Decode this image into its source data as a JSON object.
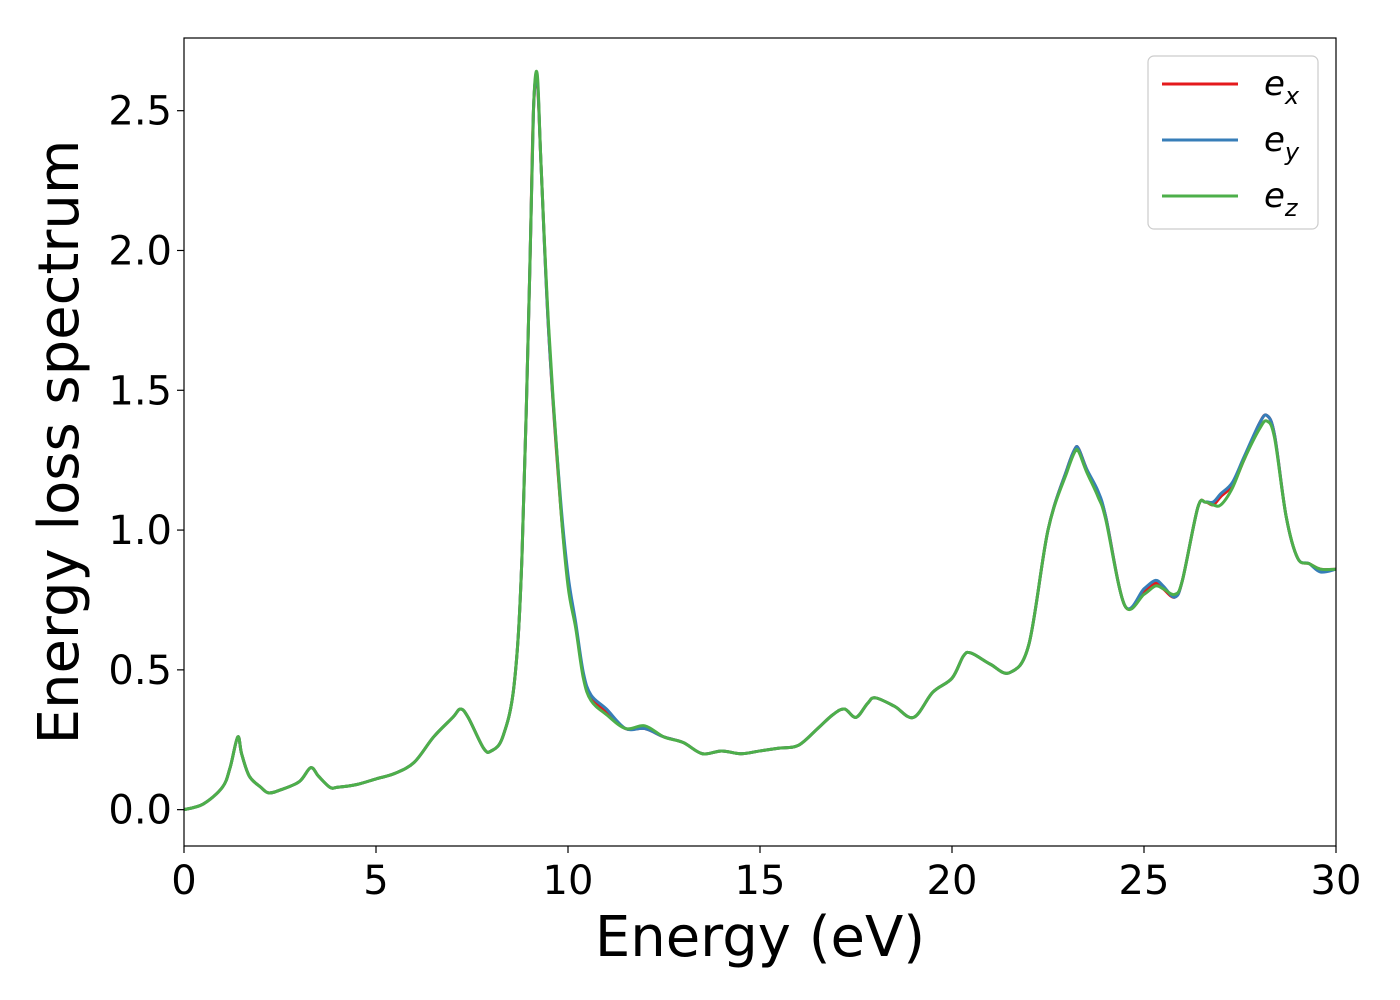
{
  "chart_data": {
    "type": "line",
    "xlabel": "Energy (eV)",
    "ylabel": "Energy loss spectrum",
    "xlim": [
      0,
      30
    ],
    "ylim": [
      -0.13,
      2.76
    ],
    "xticks": [
      0,
      5,
      10,
      15,
      20,
      25,
      30
    ],
    "yticks": [
      0.0,
      0.5,
      1.0,
      1.5,
      2.0,
      2.5
    ],
    "xtick_labels": [
      "0",
      "5",
      "10",
      "15",
      "20",
      "25",
      "30"
    ],
    "ytick_labels": [
      "0.0",
      "0.5",
      "1.0",
      "1.5",
      "2.0",
      "2.5"
    ],
    "grid": false,
    "legend_position": "top-right",
    "series": [
      {
        "name": "e_x",
        "label_base": "e",
        "label_sub": "x",
        "color": "#e41a1c",
        "x": [
          0,
          0.5,
          1.0,
          1.2,
          1.4,
          1.5,
          1.7,
          2.0,
          2.2,
          2.5,
          3.0,
          3.3,
          3.5,
          3.8,
          4.0,
          4.5,
          5.0,
          5.5,
          6.0,
          6.5,
          7.0,
          7.2,
          7.4,
          7.8,
          8.0,
          8.3,
          8.6,
          8.8,
          9.0,
          9.1,
          9.2,
          9.3,
          9.5,
          9.8,
          10.0,
          10.2,
          10.4,
          10.6,
          11.0,
          11.5,
          12.0,
          12.5,
          13.0,
          13.5,
          14.0,
          14.5,
          15.0,
          15.5,
          16.0,
          16.5,
          16.9,
          17.2,
          17.5,
          17.8,
          18.0,
          18.5,
          19.0,
          19.5,
          20.0,
          20.3,
          20.5,
          21.0,
          21.5,
          22.0,
          22.5,
          23.0,
          23.2,
          23.3,
          23.5,
          23.8,
          24.0,
          24.5,
          25.0,
          25.3,
          25.5,
          25.8,
          26.0,
          26.4,
          26.6,
          26.8,
          27.0,
          27.3,
          27.6,
          28.0,
          28.2,
          28.4,
          28.7,
          29.0,
          29.3,
          29.6,
          30.0
        ],
        "values": [
          0.0,
          0.02,
          0.08,
          0.15,
          0.26,
          0.2,
          0.12,
          0.08,
          0.06,
          0.07,
          0.1,
          0.15,
          0.12,
          0.08,
          0.08,
          0.09,
          0.11,
          0.13,
          0.17,
          0.26,
          0.33,
          0.36,
          0.33,
          0.22,
          0.21,
          0.26,
          0.45,
          0.9,
          1.9,
          2.5,
          2.6,
          2.3,
          1.7,
          1.1,
          0.82,
          0.66,
          0.48,
          0.4,
          0.35,
          0.29,
          0.29,
          0.26,
          0.24,
          0.2,
          0.21,
          0.2,
          0.21,
          0.22,
          0.23,
          0.29,
          0.34,
          0.36,
          0.33,
          0.38,
          0.4,
          0.37,
          0.33,
          0.42,
          0.47,
          0.55,
          0.56,
          0.52,
          0.49,
          0.59,
          1.0,
          1.22,
          1.29,
          1.29,
          1.22,
          1.13,
          1.05,
          0.73,
          0.78,
          0.81,
          0.79,
          0.76,
          0.82,
          1.08,
          1.1,
          1.09,
          1.12,
          1.16,
          1.25,
          1.38,
          1.41,
          1.34,
          1.05,
          0.9,
          0.88,
          0.86,
          0.86
        ]
      },
      {
        "name": "e_y",
        "label_base": "e",
        "label_sub": "y",
        "color": "#377eb8",
        "x": [
          0,
          0.5,
          1.0,
          1.2,
          1.4,
          1.5,
          1.7,
          2.0,
          2.2,
          2.5,
          3.0,
          3.3,
          3.5,
          3.8,
          4.0,
          4.5,
          5.0,
          5.5,
          6.0,
          6.5,
          7.0,
          7.2,
          7.4,
          7.8,
          8.0,
          8.3,
          8.6,
          8.8,
          9.0,
          9.1,
          9.2,
          9.3,
          9.5,
          9.8,
          10.0,
          10.2,
          10.4,
          10.6,
          11.0,
          11.5,
          12.0,
          12.5,
          13.0,
          13.5,
          14.0,
          14.5,
          15.0,
          15.5,
          16.0,
          16.5,
          16.9,
          17.2,
          17.5,
          17.8,
          18.0,
          18.5,
          19.0,
          19.5,
          20.0,
          20.3,
          20.5,
          21.0,
          21.5,
          22.0,
          22.5,
          23.0,
          23.2,
          23.3,
          23.5,
          23.8,
          24.0,
          24.5,
          25.0,
          25.3,
          25.5,
          25.8,
          26.0,
          26.4,
          26.6,
          26.8,
          27.0,
          27.3,
          27.6,
          28.0,
          28.2,
          28.4,
          28.7,
          29.0,
          29.3,
          29.6,
          30.0
        ],
        "values": [
          0.0,
          0.02,
          0.08,
          0.15,
          0.26,
          0.2,
          0.12,
          0.08,
          0.06,
          0.07,
          0.1,
          0.15,
          0.12,
          0.08,
          0.08,
          0.09,
          0.11,
          0.13,
          0.17,
          0.26,
          0.33,
          0.36,
          0.33,
          0.22,
          0.21,
          0.26,
          0.45,
          0.9,
          1.9,
          2.5,
          2.61,
          2.3,
          1.7,
          1.12,
          0.84,
          0.67,
          0.49,
          0.41,
          0.36,
          0.29,
          0.29,
          0.26,
          0.24,
          0.2,
          0.21,
          0.2,
          0.21,
          0.22,
          0.23,
          0.29,
          0.34,
          0.36,
          0.33,
          0.38,
          0.4,
          0.37,
          0.33,
          0.42,
          0.47,
          0.55,
          0.56,
          0.52,
          0.49,
          0.59,
          1.0,
          1.22,
          1.29,
          1.29,
          1.22,
          1.14,
          1.05,
          0.73,
          0.79,
          0.82,
          0.8,
          0.76,
          0.82,
          1.08,
          1.1,
          1.1,
          1.13,
          1.17,
          1.26,
          1.38,
          1.41,
          1.34,
          1.05,
          0.9,
          0.88,
          0.85,
          0.86
        ]
      },
      {
        "name": "e_z",
        "label_base": "e",
        "label_sub": "z",
        "color": "#4daf4a",
        "x": [
          0,
          0.5,
          1.0,
          1.2,
          1.4,
          1.5,
          1.7,
          2.0,
          2.2,
          2.5,
          3.0,
          3.3,
          3.5,
          3.8,
          4.0,
          4.5,
          5.0,
          5.5,
          6.0,
          6.5,
          7.0,
          7.2,
          7.4,
          7.8,
          8.0,
          8.3,
          8.6,
          8.8,
          9.0,
          9.1,
          9.2,
          9.3,
          9.5,
          9.8,
          10.0,
          10.2,
          10.4,
          10.6,
          11.0,
          11.5,
          12.0,
          12.5,
          13.0,
          13.5,
          14.0,
          14.5,
          15.0,
          15.5,
          16.0,
          16.5,
          16.9,
          17.2,
          17.5,
          17.8,
          18.0,
          18.5,
          19.0,
          19.5,
          20.0,
          20.3,
          20.5,
          21.0,
          21.5,
          22.0,
          22.5,
          23.0,
          23.2,
          23.3,
          23.5,
          23.8,
          24.0,
          24.5,
          25.0,
          25.3,
          25.5,
          25.8,
          26.0,
          26.4,
          26.6,
          26.8,
          27.0,
          27.3,
          27.6,
          28.0,
          28.2,
          28.4,
          28.7,
          29.0,
          29.3,
          29.6,
          30.0
        ],
        "values": [
          0.0,
          0.02,
          0.08,
          0.15,
          0.26,
          0.2,
          0.12,
          0.08,
          0.06,
          0.07,
          0.1,
          0.15,
          0.12,
          0.08,
          0.08,
          0.09,
          0.11,
          0.13,
          0.17,
          0.26,
          0.33,
          0.36,
          0.33,
          0.22,
          0.21,
          0.26,
          0.45,
          0.9,
          1.9,
          2.5,
          2.63,
          2.3,
          1.72,
          1.1,
          0.8,
          0.65,
          0.47,
          0.39,
          0.34,
          0.29,
          0.3,
          0.26,
          0.24,
          0.2,
          0.21,
          0.2,
          0.21,
          0.22,
          0.23,
          0.29,
          0.34,
          0.36,
          0.33,
          0.38,
          0.4,
          0.37,
          0.33,
          0.42,
          0.47,
          0.55,
          0.56,
          0.52,
          0.49,
          0.59,
          1.0,
          1.21,
          1.28,
          1.28,
          1.21,
          1.12,
          1.04,
          0.73,
          0.77,
          0.8,
          0.79,
          0.77,
          0.82,
          1.08,
          1.1,
          1.09,
          1.09,
          1.15,
          1.25,
          1.36,
          1.39,
          1.33,
          1.05,
          0.9,
          0.88,
          0.86,
          0.86
        ]
      }
    ]
  }
}
